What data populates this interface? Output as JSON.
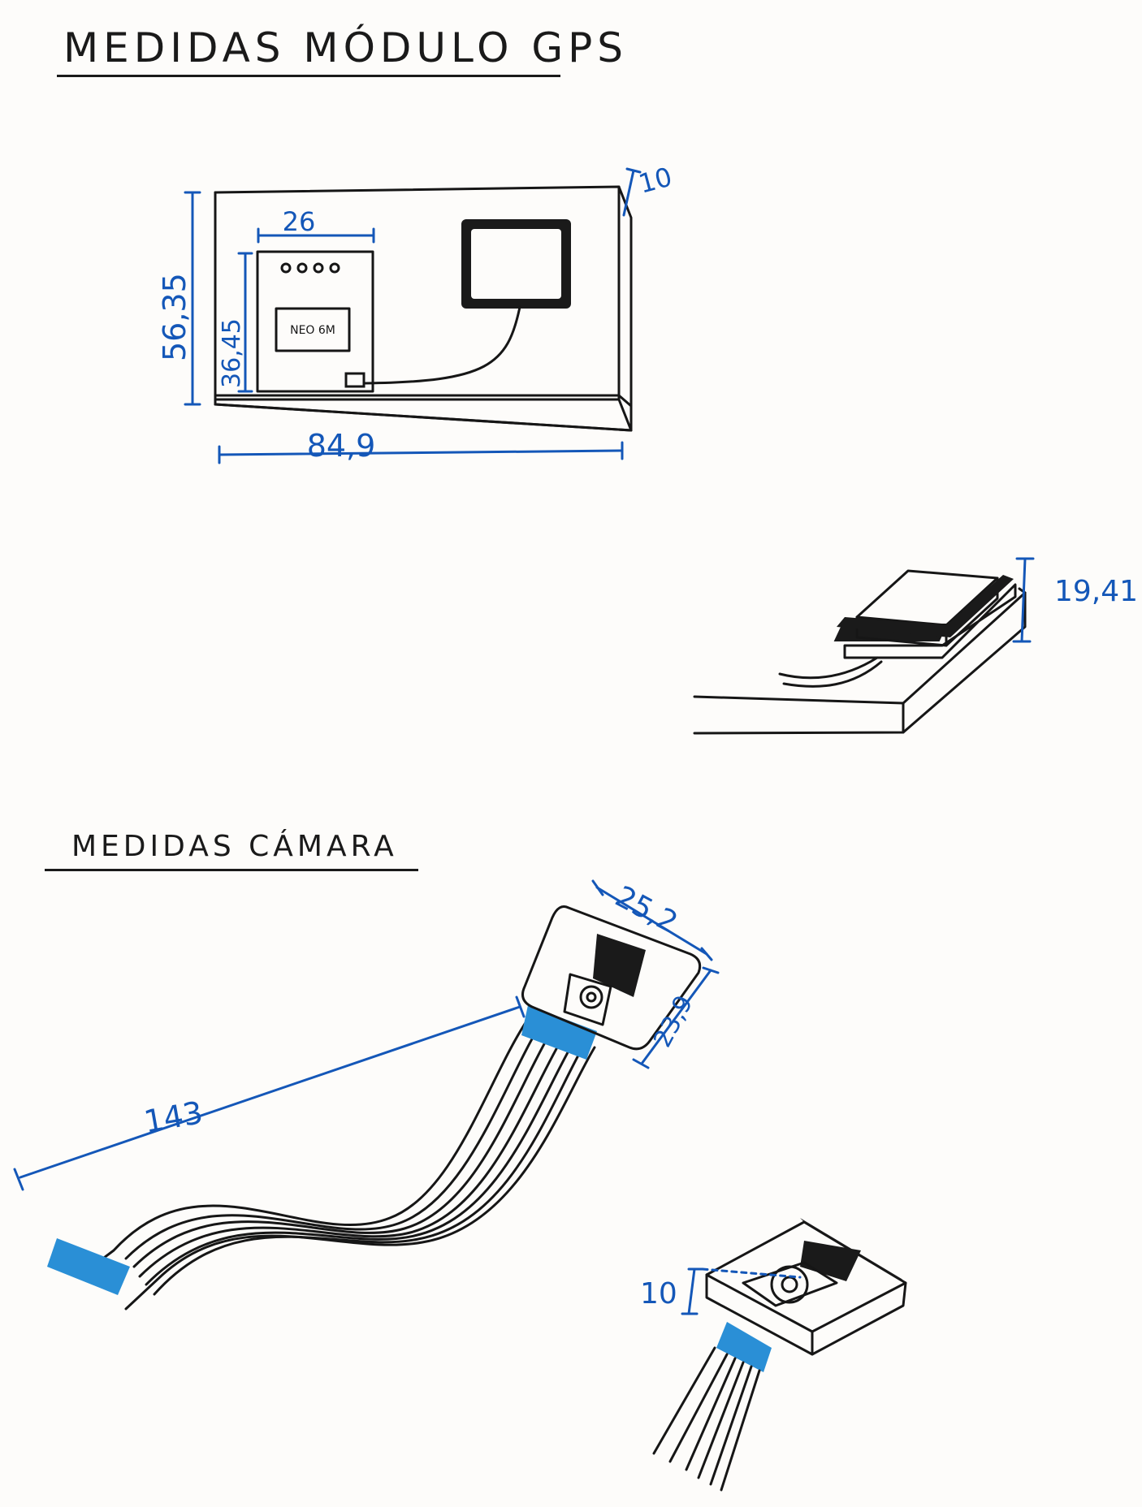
{
  "gps_section": {
    "title": "MEDIDAS MÓDULO GPS",
    "chip_label": "NEO 6M",
    "dim_width": "84,9",
    "dim_height": "56,35",
    "dim_thickness": "10",
    "dim_inner_width": "26",
    "dim_inner_height": "36,45",
    "dim_total_height": "19,41"
  },
  "camera_section": {
    "title": "MEDIDAS CÁMARA",
    "dim_cable_length": "143",
    "dim_module_width": "25,2",
    "dim_module_height": "23,9",
    "dim_module_thickness": "10"
  },
  "colors": {
    "ink": "#161616",
    "dimension": "#1457b8",
    "connector": "#2a8fd6"
  }
}
